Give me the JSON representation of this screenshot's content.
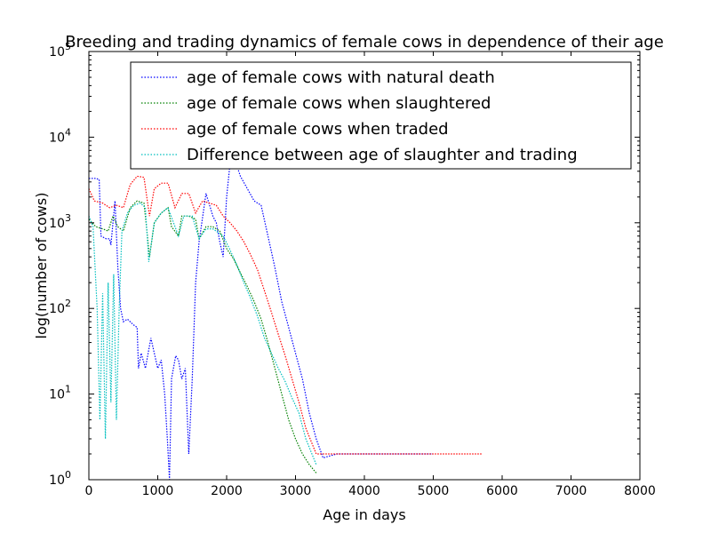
{
  "chart_data": {
    "type": "line",
    "title": "Breeding and trading dynamics of female cows in dependence of their age",
    "xlabel": "Age in days",
    "ylabel": "log(number of cows)",
    "xlim": [
      0,
      8000
    ],
    "ylim": [
      1,
      100000
    ],
    "yscale": "log",
    "xticks": [
      0,
      1000,
      2000,
      3000,
      4000,
      5000,
      6000,
      7000,
      8000
    ],
    "yticks": [
      {
        "base": "10",
        "exp": "0",
        "value": 1
      },
      {
        "base": "10",
        "exp": "1",
        "value": 10
      },
      {
        "base": "10",
        "exp": "2",
        "value": 100
      },
      {
        "base": "10",
        "exp": "3",
        "value": 1000
      },
      {
        "base": "10",
        "exp": "4",
        "value": 10000
      },
      {
        "base": "10",
        "exp": "5",
        "value": 100000
      }
    ],
    "grid": false,
    "legend_position": "top-right",
    "series": [
      {
        "name": "age of female cows with natural death",
        "color": "#0000ff",
        "style": "dotted",
        "points": [
          [
            0,
            3300
          ],
          [
            100,
            3300
          ],
          [
            150,
            3200
          ],
          [
            175,
            700
          ],
          [
            250,
            650
          ],
          [
            300,
            650
          ],
          [
            320,
            550
          ],
          [
            380,
            1800
          ],
          [
            420,
            300
          ],
          [
            460,
            100
          ],
          [
            500,
            70
          ],
          [
            560,
            75
          ],
          [
            640,
            65
          ],
          [
            700,
            60
          ],
          [
            720,
            20
          ],
          [
            760,
            30
          ],
          [
            820,
            20
          ],
          [
            900,
            45
          ],
          [
            950,
            30
          ],
          [
            1000,
            20
          ],
          [
            1050,
            25
          ],
          [
            1100,
            10
          ],
          [
            1140,
            3
          ],
          [
            1170,
            1
          ],
          [
            1200,
            15
          ],
          [
            1260,
            28
          ],
          [
            1300,
            25
          ],
          [
            1350,
            15
          ],
          [
            1400,
            20
          ],
          [
            1450,
            2
          ],
          [
            1500,
            15
          ],
          [
            1550,
            200
          ],
          [
            1600,
            600
          ],
          [
            1700,
            2200
          ],
          [
            1800,
            1200
          ],
          [
            1850,
            1000
          ],
          [
            1900,
            600
          ],
          [
            1950,
            400
          ],
          [
            2000,
            2000
          ],
          [
            2050,
            5000
          ],
          [
            2100,
            6000
          ],
          [
            2200,
            3500
          ],
          [
            2300,
            2500
          ],
          [
            2400,
            1800
          ],
          [
            2500,
            1600
          ],
          [
            2600,
            700
          ],
          [
            2700,
            300
          ],
          [
            2800,
            120
          ],
          [
            2900,
            60
          ],
          [
            3000,
            30
          ],
          [
            3100,
            15
          ],
          [
            3200,
            6
          ],
          [
            3300,
            3
          ],
          [
            3400,
            1.8
          ],
          [
            3600,
            2
          ],
          [
            5000,
            2
          ]
        ]
      },
      {
        "name": "age of female cows when slaughtered",
        "color": "#008000",
        "style": "dotted",
        "points": [
          [
            0,
            1100
          ],
          [
            100,
            900
          ],
          [
            200,
            850
          ],
          [
            280,
            800
          ],
          [
            350,
            1200
          ],
          [
            420,
            900
          ],
          [
            500,
            800
          ],
          [
            600,
            1500
          ],
          [
            700,
            1800
          ],
          [
            800,
            1700
          ],
          [
            850,
            700
          ],
          [
            880,
            400
          ],
          [
            950,
            1000
          ],
          [
            1050,
            1300
          ],
          [
            1150,
            1500
          ],
          [
            1200,
            900
          ],
          [
            1300,
            700
          ],
          [
            1350,
            1200
          ],
          [
            1450,
            1200
          ],
          [
            1550,
            1100
          ],
          [
            1600,
            650
          ],
          [
            1700,
            900
          ],
          [
            1800,
            900
          ],
          [
            1900,
            800
          ],
          [
            2000,
            500
          ],
          [
            2100,
            380
          ],
          [
            2200,
            260
          ],
          [
            2300,
            180
          ],
          [
            2400,
            120
          ],
          [
            2500,
            75
          ],
          [
            2600,
            40
          ],
          [
            2700,
            20
          ],
          [
            2800,
            10
          ],
          [
            2900,
            5
          ],
          [
            3000,
            3
          ],
          [
            3100,
            2
          ],
          [
            3200,
            1.5
          ],
          [
            3300,
            1.2
          ]
        ]
      },
      {
        "name": "age of female cows when traded",
        "color": "#ff0000",
        "style": "dotted",
        "points": [
          [
            0,
            2500
          ],
          [
            80,
            1800
          ],
          [
            200,
            1700
          ],
          [
            300,
            1500
          ],
          [
            400,
            1600
          ],
          [
            500,
            1500
          ],
          [
            600,
            2800
          ],
          [
            700,
            3500
          ],
          [
            800,
            3400
          ],
          [
            880,
            1200
          ],
          [
            950,
            2500
          ],
          [
            1050,
            2900
          ],
          [
            1150,
            2900
          ],
          [
            1250,
            1500
          ],
          [
            1350,
            2200
          ],
          [
            1450,
            2200
          ],
          [
            1550,
            1300
          ],
          [
            1650,
            1800
          ],
          [
            1750,
            1700
          ],
          [
            1850,
            1600
          ],
          [
            1950,
            1200
          ],
          [
            2050,
            1000
          ],
          [
            2150,
            800
          ],
          [
            2250,
            600
          ],
          [
            2350,
            420
          ],
          [
            2450,
            280
          ],
          [
            2550,
            160
          ],
          [
            2650,
            90
          ],
          [
            2750,
            50
          ],
          [
            2850,
            28
          ],
          [
            2950,
            15
          ],
          [
            3050,
            8
          ],
          [
            3150,
            4
          ],
          [
            3300,
            2
          ],
          [
            3700,
            2
          ],
          [
            4800,
            2
          ],
          [
            5000,
            2
          ],
          [
            5400,
            2
          ],
          [
            5700,
            2
          ]
        ]
      },
      {
        "name": "Difference between age of slaughter and trading",
        "color": "#00bfbf",
        "style": "dotted",
        "points": [
          [
            0,
            1200
          ],
          [
            60,
            900
          ],
          [
            120,
            100
          ],
          [
            160,
            5
          ],
          [
            200,
            150
          ],
          [
            240,
            3
          ],
          [
            280,
            200
          ],
          [
            320,
            8
          ],
          [
            360,
            250
          ],
          [
            400,
            5
          ],
          [
            440,
            100
          ],
          [
            480,
            800
          ],
          [
            560,
            1300
          ],
          [
            650,
            1600
          ],
          [
            750,
            1700
          ],
          [
            820,
            1500
          ],
          [
            870,
            350
          ],
          [
            950,
            1000
          ],
          [
            1050,
            1300
          ],
          [
            1150,
            1500
          ],
          [
            1230,
            1000
          ],
          [
            1300,
            700
          ],
          [
            1380,
            1200
          ],
          [
            1500,
            1200
          ],
          [
            1600,
            650
          ],
          [
            1700,
            850
          ],
          [
            1800,
            850
          ],
          [
            1950,
            700
          ],
          [
            2050,
            480
          ],
          [
            2150,
            320
          ],
          [
            2250,
            200
          ],
          [
            2350,
            130
          ],
          [
            2450,
            80
          ],
          [
            2550,
            45
          ],
          [
            2650,
            30
          ],
          [
            2750,
            20
          ],
          [
            2850,
            14
          ],
          [
            2950,
            9
          ],
          [
            3050,
            6
          ],
          [
            3150,
            3
          ],
          [
            3300,
            1.5
          ]
        ]
      }
    ]
  }
}
